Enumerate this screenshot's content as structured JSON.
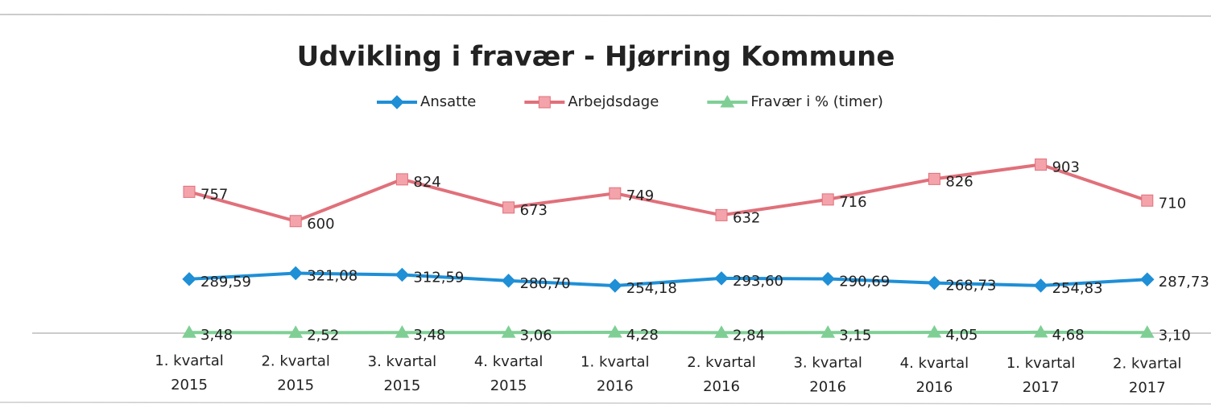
{
  "chart_data": {
    "type": "line",
    "title": "Udvikling i fravær -  Hjørring Kommune",
    "categories": [
      [
        "1. kvartal",
        "2015"
      ],
      [
        "2. kvartal",
        "2015"
      ],
      [
        "3. kvartal",
        "2015"
      ],
      [
        "4. kvartal",
        "2015"
      ],
      [
        "1. kvartal",
        "2016"
      ],
      [
        "2. kvartal",
        "2016"
      ],
      [
        "3. kvartal",
        "2016"
      ],
      [
        "4. kvartal",
        "2016"
      ],
      [
        "1. kvartal",
        "2017"
      ],
      [
        "2. kvartal",
        "2017"
      ]
    ],
    "series": [
      {
        "name": "Ansatte",
        "color": "#1f8fd6",
        "marker": "diamond",
        "values": [
          289.59,
          321.08,
          312.59,
          280.7,
          254.18,
          293.6,
          290.69,
          268.73,
          254.83,
          287.73
        ],
        "value_labels": [
          "289,59",
          "321,08",
          "312,59",
          "280,70",
          "254,18",
          "293,60",
          "290,69",
          "268,73",
          "254,83",
          "287,73"
        ]
      },
      {
        "name": "Arbejdsdage",
        "color": "#e0707a",
        "marker": "square",
        "values": [
          757,
          600,
          824,
          673,
          749,
          632,
          716,
          826,
          903,
          710
        ]
      },
      {
        "name": "Fravær i % (timer)",
        "color": "#7fcf95",
        "marker": "triangle",
        "values": [
          3.48,
          2.52,
          3.48,
          3.06,
          4.28,
          2.84,
          3.15,
          4.05,
          4.68,
          3.1
        ],
        "value_labels": [
          "3,48",
          "2,52",
          "3,48",
          "3,06",
          "4,28",
          "2,84",
          "3,15",
          "4,05",
          "4,68",
          "3,10"
        ]
      }
    ],
    "ylim": [
      0,
      1000
    ],
    "legend": "top"
  }
}
